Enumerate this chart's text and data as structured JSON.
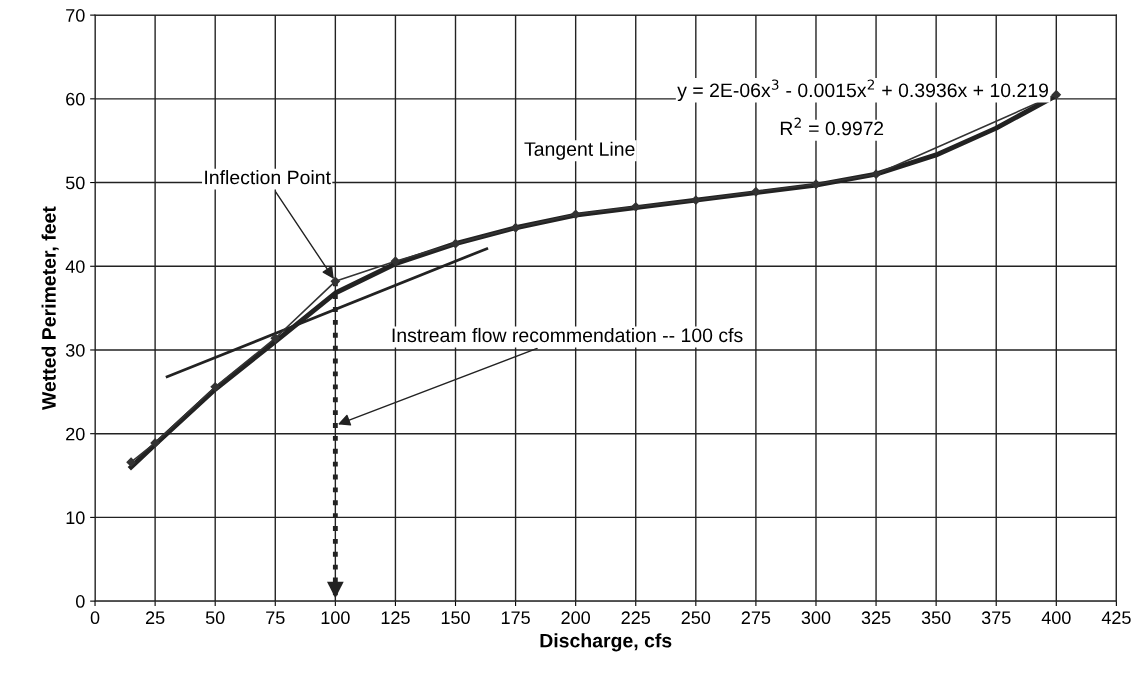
{
  "chart_data": {
    "type": "line",
    "xlabel": "Discharge, cfs",
    "ylabel": "Wetted Perimeter, feet",
    "xlim": [
      0,
      425
    ],
    "xticks": [
      0,
      25,
      50,
      75,
      100,
      125,
      150,
      175,
      200,
      225,
      250,
      275,
      300,
      325,
      350,
      375,
      400,
      425
    ],
    "ylim": [
      0,
      70
    ],
    "yticks": [
      0,
      10,
      20,
      30,
      40,
      50,
      60,
      70
    ],
    "grid": true,
    "legend": false,
    "series": [
      {
        "color": "#333333",
        "marker": "diamond",
        "line_style": "solid",
        "x": [
          15,
          25,
          50,
          75,
          100,
          125,
          150,
          175,
          200,
          225,
          250,
          275,
          300,
          325,
          400
        ],
        "values": [
          16.6,
          18.9,
          25.6,
          31.4,
          38.2,
          40.6,
          42.7,
          44.6,
          46.2,
          47.1,
          47.9,
          48.9,
          49.8,
          51.0,
          60.5
        ]
      },
      {
        "color": "#222222",
        "marker": "none",
        "line_style": "solid",
        "x": [
          15,
          25,
          50,
          75,
          100,
          125,
          150,
          175,
          200,
          250,
          300,
          325,
          350,
          375,
          400
        ],
        "values": [
          16.0,
          18.7,
          25.3,
          31.0,
          36.8,
          40.3,
          42.7,
          44.6,
          46.1,
          47.9,
          49.7,
          51.0,
          53.3,
          56.5,
          60.4
        ]
      },
      {
        "color": "#222222",
        "marker": "none",
        "line_style": "solid",
        "x": [
          30,
          163
        ],
        "values": [
          26.8,
          42.1
        ]
      },
      {
        "color": "#222222",
        "marker": "none",
        "line_style": "dotted",
        "x": [
          100,
          100
        ],
        "values": [
          38.2,
          0
        ]
      }
    ],
    "annotations": [
      {
        "text": "Inflection Point",
        "x": 100,
        "y": 38.2
      },
      "Tangent Line",
      {
        "text": "Instream flow recommendation -- 100 cfs",
        "x": 100,
        "y": 21
      },
      "y = 2E-06x$^{3}$ - 0.0015x$^{2}$ + 0.3936x + 10.219",
      "R$^{2}$ = 0.9972"
    ]
  }
}
